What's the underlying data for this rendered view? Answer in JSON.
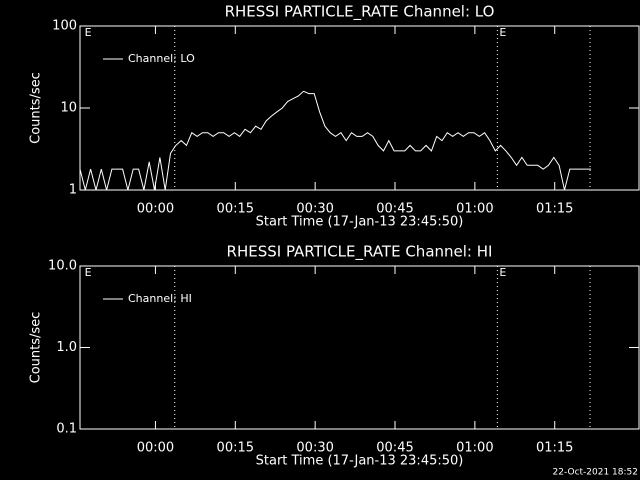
{
  "chart_data": [
    {
      "type": "line",
      "title": "RHESSI PARTICLE_RATE Channel: LO",
      "xlabel": "Start Time (17-Jan-13 23:45:50)",
      "ylabel": "Counts/sec",
      "log_y": true,
      "xlim": [
        0,
        105
      ],
      "ylim": [
        1,
        100
      ],
      "yticks": [
        1,
        10,
        100
      ],
      "xticks": [
        {
          "value": 14.17,
          "label": "00:00"
        },
        {
          "value": 29.17,
          "label": "00:15"
        },
        {
          "value": 44.17,
          "label": "00:30"
        },
        {
          "value": 59.17,
          "label": "00:45"
        },
        {
          "value": 74.17,
          "label": "01:00"
        },
        {
          "value": 89.17,
          "label": "01:15"
        }
      ],
      "vlines": [
        17.8,
        78.4,
        95.8
      ],
      "annotations": [
        {
          "x": 0.5,
          "label": "E"
        },
        {
          "x": 78.4,
          "label": "E"
        }
      ],
      "x": [
        0,
        1,
        2,
        3,
        4,
        5,
        6,
        7,
        8,
        9,
        10,
        11,
        12,
        13,
        14,
        15,
        16,
        17,
        18,
        19,
        20,
        21,
        22,
        23,
        24,
        25,
        26,
        27,
        28,
        29,
        30,
        31,
        32,
        33,
        34,
        35,
        36,
        37,
        38,
        39,
        40,
        41,
        42,
        43,
        44,
        45,
        46,
        47,
        48,
        49,
        50,
        51,
        52,
        53,
        54,
        55,
        56,
        57,
        58,
        59,
        60,
        61,
        62,
        63,
        64,
        65,
        66,
        67,
        68,
        69,
        70,
        71,
        72,
        73,
        74,
        75,
        76,
        77,
        78,
        79,
        80,
        81,
        82,
        83,
        84,
        85,
        86,
        87,
        88,
        89,
        90,
        91,
        92,
        93,
        94,
        95,
        96
      ],
      "series": [
        {
          "name": "Channel: LO",
          "color": "#ffffff",
          "values": [
            1.8,
            1,
            1.8,
            1,
            1.8,
            1,
            1.8,
            1.8,
            1.8,
            1,
            1.8,
            1.8,
            1,
            2.2,
            1,
            2.5,
            1,
            2.8,
            3.5,
            4,
            3.5,
            5,
            4.5,
            5,
            5,
            4.5,
            5,
            5,
            4.5,
            5,
            4.5,
            5.5,
            5,
            6,
            5.5,
            7,
            8,
            9,
            10,
            12,
            13,
            14,
            16,
            15,
            15,
            9,
            6,
            5,
            4.5,
            5,
            4,
            5,
            4.5,
            4.5,
            5,
            4.5,
            3.5,
            3,
            4,
            3,
            3,
            3,
            3.5,
            3,
            3,
            3.5,
            3,
            4.5,
            4,
            5,
            4.5,
            5,
            4.5,
            5,
            5,
            4.5,
            5,
            4,
            3,
            3.5,
            3,
            2.5,
            2,
            2.5,
            2,
            2,
            2,
            1.8,
            2,
            2.5,
            2,
            1,
            1.8,
            1.8,
            1.8,
            1.8,
            1.8
          ]
        }
      ]
    },
    {
      "type": "line",
      "title": "RHESSI PARTICLE_RATE Channel: HI",
      "xlabel": "Start Time (17-Jan-13 23:45:50)",
      "ylabel": "Counts/sec",
      "log_y": true,
      "xlim": [
        0,
        105
      ],
      "ylim": [
        0.1,
        10
      ],
      "yticks": [
        0.1,
        {
          "value": 1,
          "label": "1.0"
        },
        {
          "value": 10,
          "label": "10.0"
        }
      ],
      "xticks": [
        {
          "value": 14.17,
          "label": "00:00"
        },
        {
          "value": 29.17,
          "label": "00:15"
        },
        {
          "value": 44.17,
          "label": "00:30"
        },
        {
          "value": 59.17,
          "label": "00:45"
        },
        {
          "value": 74.17,
          "label": "01:00"
        },
        {
          "value": 89.17,
          "label": "01:15"
        }
      ],
      "vlines": [
        17.8,
        78.4,
        95.8
      ],
      "annotations": [
        {
          "x": 0.5,
          "label": "E"
        },
        {
          "x": 78.4,
          "label": "E"
        }
      ],
      "x": [],
      "series": [
        {
          "name": "Channel: HI",
          "color": "#ffffff",
          "values": []
        }
      ]
    }
  ],
  "footer": "22-Oct-2021 18:52"
}
